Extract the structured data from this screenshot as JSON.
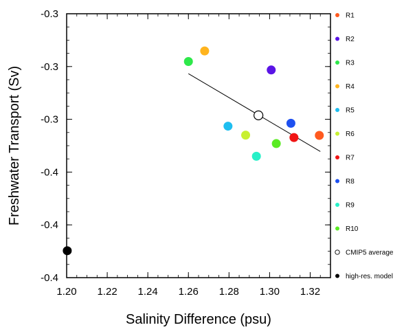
{
  "chart_data": {
    "type": "scatter",
    "xlabel": "Salinity Difference (psu)",
    "ylabel": "Freshwater Transport (Sv)",
    "xlim": [
      1.2,
      1.33
    ],
    "ylim": [
      -0.4,
      -0.3
    ],
    "x_ticks": [
      1.2,
      1.22,
      1.24,
      1.26,
      1.28,
      1.3,
      1.32
    ],
    "x_tick_labels": [
      "1.20",
      "1.22",
      "1.24",
      "1.26",
      "1.28",
      "1.30",
      "1.32"
    ],
    "y_ticks": [
      -0.3,
      -0.32,
      -0.34,
      -0.36,
      -0.38,
      -0.4
    ],
    "y_tick_labels": [
      "-0.3",
      "-0.3",
      "-0.3",
      "-0.4",
      "-0.4",
      "-0.4"
    ],
    "series": [
      {
        "name": "R1",
        "color": "#ff5a1f",
        "x": 1.3245,
        "y": -0.3461
      },
      {
        "name": "R2",
        "color": "#5a14e6",
        "x": 1.3008,
        "y": -0.3213
      },
      {
        "name": "R3",
        "color": "#2ee84a",
        "x": 1.26,
        "y": -0.3181
      },
      {
        "name": "R4",
        "color": "#ffb41e",
        "x": 1.268,
        "y": -0.3141
      },
      {
        "name": "R5",
        "color": "#1ebef0",
        "x": 1.2795,
        "y": -0.3426
      },
      {
        "name": "R6",
        "color": "#c8f032",
        "x": 1.2882,
        "y": -0.346
      },
      {
        "name": "R7",
        "color": "#f01414",
        "x": 1.312,
        "y": -0.3469
      },
      {
        "name": "R8",
        "color": "#1e50f0",
        "x": 1.3105,
        "y": -0.3415
      },
      {
        "name": "R9",
        "color": "#28f0c8",
        "x": 1.2935,
        "y": -0.354
      },
      {
        "name": "R10",
        "color": "#5aeb23",
        "x": 1.3033,
        "y": -0.3492
      },
      {
        "name": "CMIP5 average",
        "color": "#ffffff",
        "x": 1.2945,
        "y": -0.3385,
        "hollow": true
      },
      {
        "name": "high-res. model",
        "color": "#000000",
        "x": 1.2003,
        "y": -0.3898
      }
    ],
    "trend_line": {
      "x": [
        1.26,
        1.325
      ],
      "y": [
        -0.3227,
        -0.3522
      ]
    },
    "legend_position": "right",
    "grid": false
  }
}
